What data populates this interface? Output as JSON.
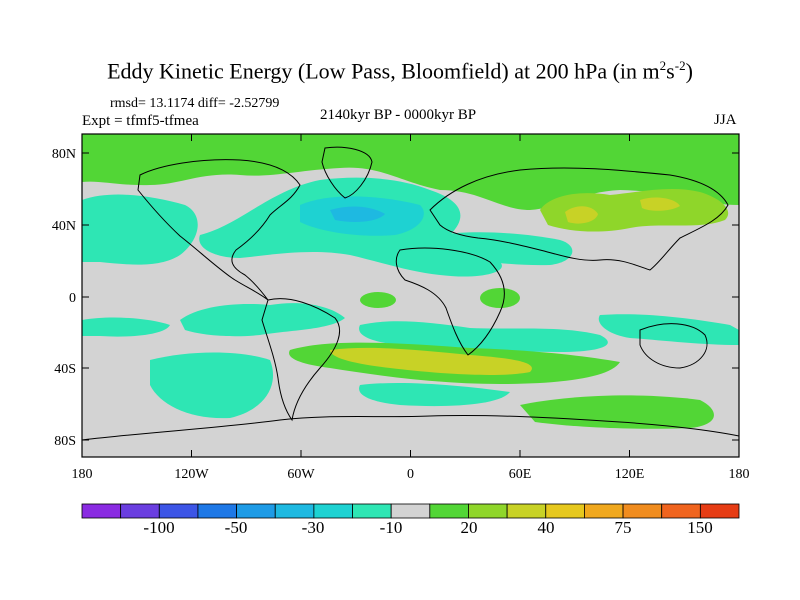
{
  "title": {
    "prefix": "Eddy Kinetic Energy (Low Pass, Bloomfield) at 200 hPa (in m",
    "sup1": "2",
    "mid": "s",
    "sup2": "-2",
    "suffix": ")"
  },
  "stats": {
    "rmsd": "rmsd= 13.1174 diff= -2.52799"
  },
  "experiment": "Expt = tfmf5-tfmea",
  "period": "2140kyr BP - 0000kyr BP",
  "season": "JJA",
  "lat_ticks": [
    "80N",
    "40N",
    "0",
    "40S",
    "80S"
  ],
  "lon_ticks": [
    "180",
    "120W",
    "60W",
    "0",
    "60E",
    "120E",
    "180"
  ],
  "colorbar": {
    "labels": [
      "-100",
      "-50",
      "-30",
      "-10",
      "20",
      "40",
      "75",
      "150"
    ],
    "colors": [
      "#8a2be2",
      "#6a3ee0",
      "#3c55e6",
      "#1e78e6",
      "#1e9be6",
      "#1eb9e1",
      "#1ed2d2",
      "#2ee6b4",
      "#d3d3d3",
      "#52d636",
      "#8fd62a",
      "#c8d226",
      "#e6c81e",
      "#f0a81e",
      "#f08c1e",
      "#f0641e",
      "#e63c14"
    ]
  },
  "map_colors": {
    "neutral": "#d3d3d3",
    "pos1": "#52d636",
    "pos2": "#8fd62a",
    "pos3": "#c8d226",
    "pos4": "#e6c81e",
    "neg1": "#2ee6b4",
    "neg2": "#1ed2d2",
    "neg3": "#1eb9e1",
    "neg4": "#1e9be6"
  }
}
